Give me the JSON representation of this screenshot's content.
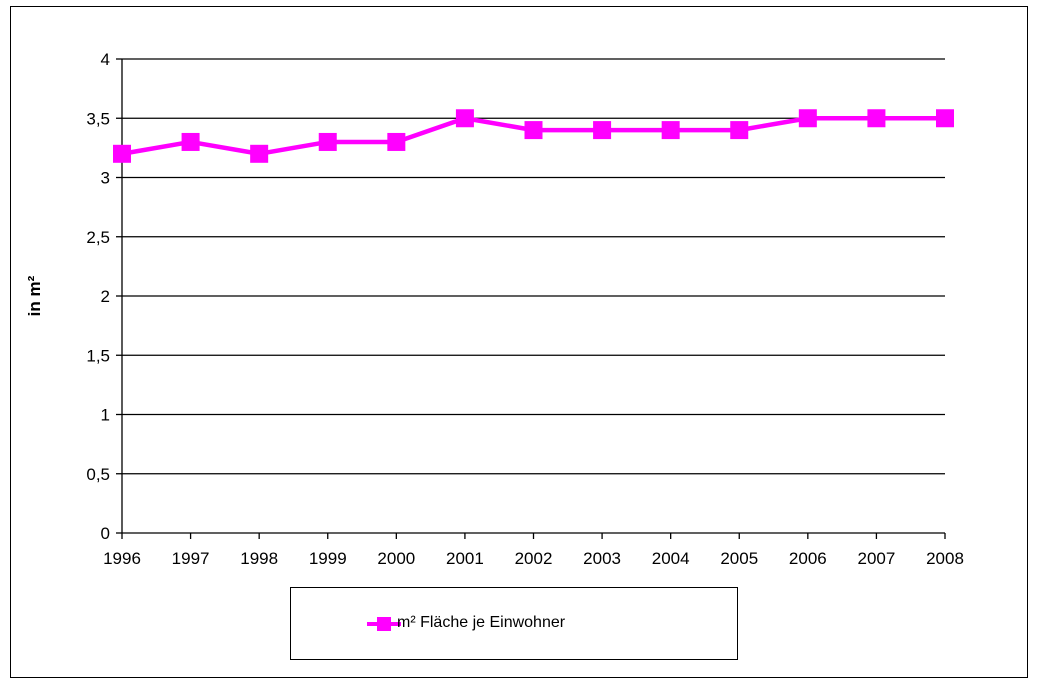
{
  "chart_data": {
    "type": "line",
    "title": "",
    "xlabel": "",
    "ylabel": "in m²",
    "ylim": [
      0,
      4
    ],
    "yticks": [
      "0",
      "0,5",
      "1",
      "1,5",
      "2",
      "2,5",
      "3",
      "3,5",
      "4"
    ],
    "ytick_values": [
      0,
      0.5,
      1,
      1.5,
      2,
      2.5,
      3,
      3.5,
      4
    ],
    "categories": [
      "1996",
      "1997",
      "1998",
      "1999",
      "2000",
      "2001",
      "2002",
      "2003",
      "2004",
      "2005",
      "2006",
      "2007",
      "2008"
    ],
    "series": [
      {
        "name": "m² Fläche je Einwohner",
        "color": "#ff00ff",
        "marker": "square",
        "values": [
          3.2,
          3.3,
          3.2,
          3.3,
          3.3,
          3.5,
          3.4,
          3.4,
          3.4,
          3.4,
          3.5,
          3.5,
          3.5
        ]
      }
    ],
    "grid": "horizontal",
    "legend_position": "bottom"
  }
}
